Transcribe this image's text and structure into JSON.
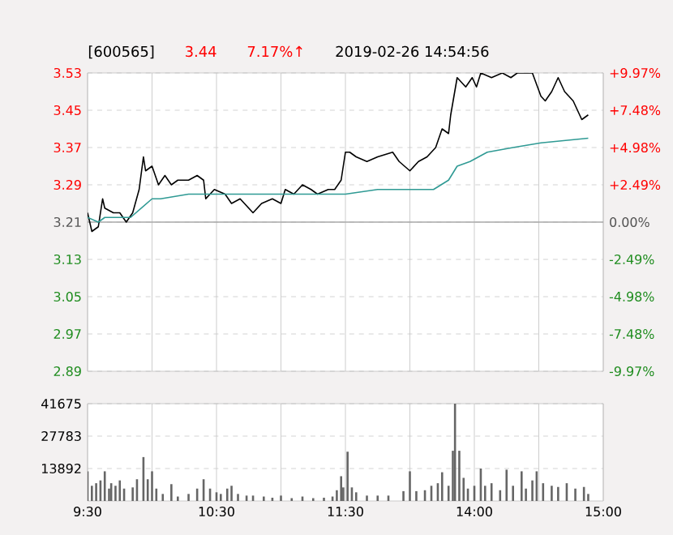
{
  "chart_data": [
    {
      "type": "line",
      "title": "[600565]",
      "annotations": [
        "3.44",
        "7.17%↑",
        "2019-02-26 14:54:56"
      ],
      "categories": [
        null,
        null,
        null,
        null,
        null,
        null,
        null,
        null,
        null,
        null,
        null,
        null,
        null,
        null,
        null,
        null,
        null,
        null,
        null,
        null,
        null,
        null,
        null,
        null,
        null,
        null,
        null,
        null,
        null,
        null,
        null,
        null,
        null,
        null,
        null,
        null,
        null,
        null,
        null,
        null,
        null,
        null,
        null,
        null,
        null,
        null,
        null,
        null,
        null,
        null,
        null,
        null,
        null,
        null,
        null,
        null,
        null,
        null,
        null,
        null,
        null,
        null,
        null,
        null,
        null,
        null,
        null,
        null,
        null,
        null,
        null,
        null,
        null,
        null,
        null,
        null,
        null,
        null,
        null,
        null,
        null,
        null,
        null,
        null,
        null,
        null,
        null,
        null,
        null,
        null,
        null,
        null,
        null,
        null,
        null,
        null,
        null,
        null,
        null,
        null,
        null,
        null,
        null,
        null,
        null,
        null,
        null,
        null,
        null,
        null,
        null,
        null,
        null,
        null,
        null,
        null,
        null,
        null,
        null,
        null,
        null,
        null,
        null,
        null,
        null,
        null,
        null,
        null,
        null,
        null,
        null,
        null,
        null,
        null,
        null,
        null,
        null,
        null,
        null,
        null,
        null,
        null,
        null,
        null,
        null,
        null,
        null,
        null,
        null,
        null,
        null,
        null,
        null,
        null,
        null,
        null,
        null,
        null,
        null,
        null,
        null,
        null,
        null,
        null,
        null,
        null,
        null,
        null,
        null,
        null,
        null,
        null,
        null,
        null,
        null,
        null,
        null,
        null,
        null,
        null,
        null,
        null,
        null,
        null,
        null,
        null,
        null,
        null,
        null,
        null,
        null,
        null,
        null,
        null,
        null,
        null,
        null,
        null,
        null,
        null,
        null,
        null,
        null,
        null,
        null,
        null,
        null,
        null,
        null,
        null,
        null,
        null,
        null,
        null,
        null,
        null,
        null,
        null,
        null,
        null,
        null,
        null,
        null,
        null,
        null,
        null,
        null,
        null,
        null,
        null,
        null,
        null,
        null,
        null,
        null,
        null,
        null,
        null,
        null,
        null,
        null
      ],
      "series": [
        {
          "color": "#000000",
          "values": [
            3.23,
            null,
            3.19,
            null,
            null,
            3.2,
            null,
            3.26,
            3.24,
            null,
            null,
            null,
            3.23,
            null,
            null,
            3.23,
            null,
            null,
            3.21,
            null,
            null,
            3.23,
            null,
            null,
            3.28,
            null,
            3.35,
            3.32,
            null,
            null,
            3.33,
            null,
            null,
            3.29,
            null,
            null,
            3.31,
            null,
            null,
            3.29,
            null,
            null,
            3.3,
            null,
            null,
            null,
            null,
            3.3,
            null,
            null,
            null,
            3.31,
            null,
            null,
            3.3,
            3.26,
            null,
            null,
            null,
            3.28,
            null,
            null,
            null,
            null,
            3.27,
            null,
            null,
            3.25,
            null,
            null,
            null,
            3.26,
            null,
            null,
            null,
            null,
            null,
            3.23,
            null,
            null,
            null,
            3.25,
            null,
            null,
            null,
            null,
            3.26,
            null,
            null,
            null,
            3.25,
            null,
            3.28,
            null,
            null,
            null,
            3.27,
            null,
            null,
            null,
            3.29,
            null,
            null,
            null,
            3.28,
            null,
            null,
            3.27,
            null,
            null,
            null,
            null,
            3.28,
            null,
            null,
            3.28,
            null,
            null,
            3.3,
            null,
            3.36,
            null,
            3.36,
            null,
            null,
            3.35,
            null,
            null,
            null,
            null,
            3.34,
            null,
            null,
            null,
            null,
            3.35,
            null,
            null,
            null,
            null,
            null,
            null,
            3.36,
            null,
            null,
            3.34,
            null,
            null,
            null,
            null,
            3.32,
            null,
            null,
            null,
            3.34,
            null,
            null,
            null,
            3.35,
            null,
            null,
            null,
            3.37,
            null,
            null,
            3.41,
            null,
            null,
            3.4,
            3.44,
            null,
            null,
            3.52,
            null,
            3.51,
            null,
            3.5,
            null,
            null,
            3.52,
            null,
            3.5,
            null,
            3.53,
            null,
            null,
            null,
            null,
            3.52,
            null,
            null,
            null,
            null,
            3.53,
            null,
            null,
            null,
            3.52,
            null,
            null,
            3.53,
            null,
            null,
            null,
            null,
            null,
            null,
            3.53,
            null,
            null,
            null,
            3.48,
            null,
            3.47,
            null,
            null,
            3.49,
            null,
            null,
            3.52,
            null,
            null,
            3.49,
            null,
            null,
            null,
            3.47,
            null,
            null,
            3.44,
            3.43,
            null,
            null,
            3.44,
            null,
            null,
            null,
            null,
            null,
            null,
            null
          ]
        },
        {
          "color": "#2f9a94",
          "values": [
            3.22,
            null,
            null,
            null,
            null,
            3.21,
            null,
            null,
            3.22,
            null,
            null,
            null,
            null,
            null,
            null,
            null,
            null,
            null,
            null,
            null,
            3.22,
            null,
            null,
            null,
            null,
            3.24,
            null,
            null,
            null,
            null,
            3.26,
            null,
            null,
            null,
            3.26,
            null,
            null,
            null,
            null,
            null,
            null,
            null,
            null,
            null,
            null,
            null,
            null,
            3.27,
            null,
            null,
            null,
            null,
            null,
            null,
            null,
            null,
            null,
            null,
            null,
            null,
            null,
            null,
            null,
            null,
            null,
            null,
            null,
            null,
            null,
            null,
            null,
            null,
            null,
            null,
            null,
            null,
            null,
            3.27,
            null,
            null,
            null,
            null,
            null,
            null,
            null,
            null,
            null,
            null,
            null,
            null,
            null,
            null,
            null,
            null,
            null,
            null,
            null,
            null,
            null,
            null,
            null,
            null,
            3.27,
            null,
            null,
            null,
            null,
            null,
            null,
            null,
            null,
            null,
            null,
            null,
            null,
            null,
            null,
            null,
            null,
            null,
            3.27,
            null,
            null,
            null,
            null,
            null,
            null,
            null,
            null,
            null,
            null,
            null,
            null,
            null,
            null,
            3.28,
            null,
            null,
            null,
            null,
            null,
            null,
            null,
            null,
            null,
            null,
            null,
            null,
            null,
            null,
            null,
            null,
            null,
            null,
            null,
            null,
            null,
            null,
            null,
            null,
            null,
            3.28,
            null,
            null,
            null,
            null,
            null,
            null,
            3.3,
            null,
            null,
            null,
            3.33,
            null,
            null,
            null,
            null,
            null,
            3.34,
            null,
            null,
            null,
            null,
            null,
            null,
            null,
            3.36,
            null,
            null,
            null,
            null,
            null,
            null,
            null,
            null,
            null,
            null,
            null,
            3.37,
            null,
            null,
            null,
            null,
            null,
            null,
            null,
            null,
            null,
            null,
            null,
            null,
            3.38,
            null,
            null,
            null,
            null,
            null,
            null,
            null,
            null,
            null,
            null,
            null,
            null,
            null,
            null,
            null,
            null,
            null,
            null,
            null,
            null,
            null,
            3.39,
            null,
            null,
            null,
            null,
            null,
            null,
            null
          ]
        }
      ],
      "ylim": [
        2.89,
        3.53
      ],
      "yticks": [
        2.89,
        2.97,
        3.05,
        3.13,
        3.21,
        3.29,
        3.37,
        3.45,
        3.53
      ],
      "y2lim": [
        -9.97,
        9.97
      ],
      "y2ticks": [
        {
          "value": -9.97,
          "label": "-9.97%"
        },
        {
          "value": -7.48,
          "label": "-7.48%"
        },
        {
          "value": -4.98,
          "label": "-4.98%"
        },
        {
          "value": -2.49,
          "label": "-2.49%"
        },
        {
          "value": 0,
          "label": "0.00%"
        },
        {
          "value": 2.49,
          "label": "+2.49%"
        },
        {
          "value": 4.98,
          "label": "+4.98%"
        },
        {
          "value": 7.48,
          "label": "+7.48%"
        },
        {
          "value": 9.97,
          "label": "+9.97%"
        }
      ],
      "ref_lines": [
        {
          "axis": "y",
          "value": 3.21,
          "color": "#a8a8a8"
        }
      ],
      "grid": true
    },
    {
      "type": "bar",
      "color": "#666666",
      "categories": [
        "9:30",
        null,
        null,
        null,
        null,
        null,
        null,
        null,
        null,
        null,
        null,
        null,
        null,
        null,
        null,
        null,
        null,
        null,
        null,
        null,
        null,
        null,
        null,
        null,
        null,
        null,
        null,
        null,
        null,
        null,
        null,
        null,
        null,
        null,
        null,
        null,
        null,
        null,
        null,
        null,
        null,
        null,
        null,
        null,
        null,
        null,
        null,
        null,
        null,
        null,
        null,
        null,
        null,
        null,
        null,
        null,
        null,
        null,
        null,
        null,
        "10:30",
        null,
        null,
        null,
        null,
        null,
        null,
        null,
        null,
        null,
        null,
        null,
        null,
        null,
        null,
        null,
        null,
        null,
        null,
        null,
        null,
        null,
        null,
        null,
        null,
        null,
        null,
        null,
        null,
        null,
        null,
        null,
        null,
        null,
        null,
        null,
        null,
        null,
        null,
        null,
        null,
        null,
        null,
        null,
        null,
        null,
        null,
        null,
        null,
        null,
        null,
        null,
        null,
        null,
        null,
        null,
        null,
        null,
        null,
        null,
        "11:30",
        null,
        null,
        null,
        null,
        null,
        null,
        null,
        null,
        null,
        null,
        null,
        null,
        null,
        null,
        null,
        null,
        null,
        null,
        null,
        null,
        null,
        null,
        null,
        null,
        null,
        null,
        null,
        null,
        null,
        null,
        null,
        null,
        null,
        null,
        null,
        null,
        null,
        null,
        null,
        null,
        null,
        null,
        null,
        null,
        null,
        null,
        null,
        null,
        null,
        null,
        null,
        null,
        null,
        null,
        null,
        null,
        null,
        null,
        null,
        "14:00",
        null,
        null,
        null,
        null,
        null,
        null,
        null,
        null,
        null,
        null,
        null,
        null,
        null,
        null,
        null,
        null,
        null,
        null,
        null,
        null,
        null,
        null,
        null,
        null,
        null,
        null,
        null,
        null,
        null,
        null,
        null,
        null,
        null,
        null,
        null,
        null,
        null,
        null,
        null,
        null,
        null,
        null,
        null,
        null,
        null,
        null,
        null,
        null,
        null,
        null,
        null,
        null,
        null,
        null,
        null,
        null,
        null,
        null,
        null,
        "15:00"
      ],
      "values": [
        12700,
        null,
        6500,
        null,
        7600,
        null,
        8800,
        null,
        12700,
        null,
        5300,
        7600,
        null,
        6500,
        null,
        8800,
        null,
        5300,
        null,
        null,
        null,
        5800,
        null,
        9300,
        null,
        null,
        18800,
        null,
        9300,
        null,
        12700,
        null,
        5300,
        null,
        null,
        3000,
        null,
        null,
        null,
        7200,
        null,
        null,
        1900,
        null,
        null,
        null,
        null,
        3000,
        null,
        null,
        null,
        5300,
        null,
        null,
        9300,
        null,
        null,
        5300,
        null,
        null,
        3700,
        null,
        3000,
        null,
        null,
        5300,
        null,
        6500,
        null,
        null,
        3000,
        null,
        null,
        null,
        2300,
        null,
        null,
        2300,
        null,
        null,
        null,
        null,
        1900,
        null,
        null,
        null,
        1400,
        null,
        null,
        null,
        2300,
        null,
        null,
        null,
        null,
        1200,
        null,
        null,
        null,
        null,
        1900,
        null,
        null,
        null,
        null,
        1200,
        null,
        null,
        null,
        null,
        1400,
        null,
        null,
        null,
        1900,
        null,
        4600,
        null,
        10600,
        5800,
        null,
        21100,
        null,
        5800,
        null,
        3700,
        null,
        null,
        null,
        null,
        2300,
        null,
        null,
        null,
        null,
        2300,
        null,
        null,
        null,
        null,
        2300,
        null,
        null,
        null,
        null,
        null,
        null,
        4200,
        null,
        null,
        12700,
        null,
        null,
        4200,
        null,
        null,
        null,
        4600,
        null,
        null,
        6500,
        null,
        null,
        7600,
        null,
        12300,
        null,
        null,
        6500,
        null,
        21500,
        41675,
        null,
        21500,
        null,
        9900,
        null,
        5300,
        null,
        null,
        6500,
        null,
        null,
        13900,
        null,
        6500,
        null,
        null,
        7600,
        null,
        null,
        null,
        4600,
        null,
        null,
        13400,
        null,
        null,
        6500,
        null,
        null,
        null,
        12700,
        null,
        5300,
        null,
        null,
        8800,
        null,
        12700,
        null,
        null,
        7600,
        null,
        null,
        null,
        6500,
        null,
        null,
        6000,
        null,
        null,
        null,
        7600,
        null,
        null,
        null,
        5300,
        null,
        null,
        null,
        6000,
        null,
        3000,
        null,
        null,
        null,
        null,
        null,
        null,
        null
      ],
      "ylim": [
        0,
        41675
      ],
      "yticks": [
        13892,
        27783,
        41675
      ],
      "grid": true
    }
  ]
}
